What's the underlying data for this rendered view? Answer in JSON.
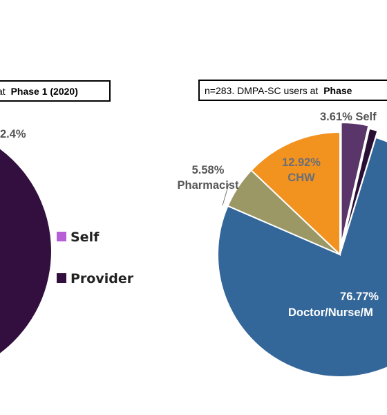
{
  "chart_data": [
    {
      "type": "pie",
      "title_prefix": "at",
      "title_bold": "Phase 1 (2020)",
      "series": [
        {
          "name": "Self",
          "value": 2.4,
          "color": "#B65FD6"
        },
        {
          "name": "Provider",
          "value": 97.6,
          "color": "#320F3E"
        }
      ],
      "labels": [
        "2.4%"
      ],
      "legend": [
        "Self",
        "Provider"
      ]
    },
    {
      "type": "pie",
      "title_prefix": "n=283. DMPA-SC users at",
      "title_bold": "Phase",
      "slices": [
        {
          "label": "Self",
          "value": 3.61,
          "color": "#5A3569"
        },
        {
          "label": "",
          "value": 1.12,
          "color": "#2A0F35"
        },
        {
          "label": "Doctor/Nurse/M",
          "value": 76.77,
          "color": "#346799"
        },
        {
          "label": "Pharmacist",
          "value": 5.58,
          "color": "#9B9866"
        },
        {
          "label": "CHW",
          "value": 12.92,
          "color": "#F2921F"
        }
      ],
      "labels": {
        "self": "3.61% Self",
        "pharm_pct": "5.58%",
        "pharm_name": "Pharmacist",
        "chw_pct": "12.92%",
        "chw_name": "CHW",
        "doc_pct": "76.77%",
        "doc_name": "Doctor/Nurse/M"
      }
    }
  ]
}
